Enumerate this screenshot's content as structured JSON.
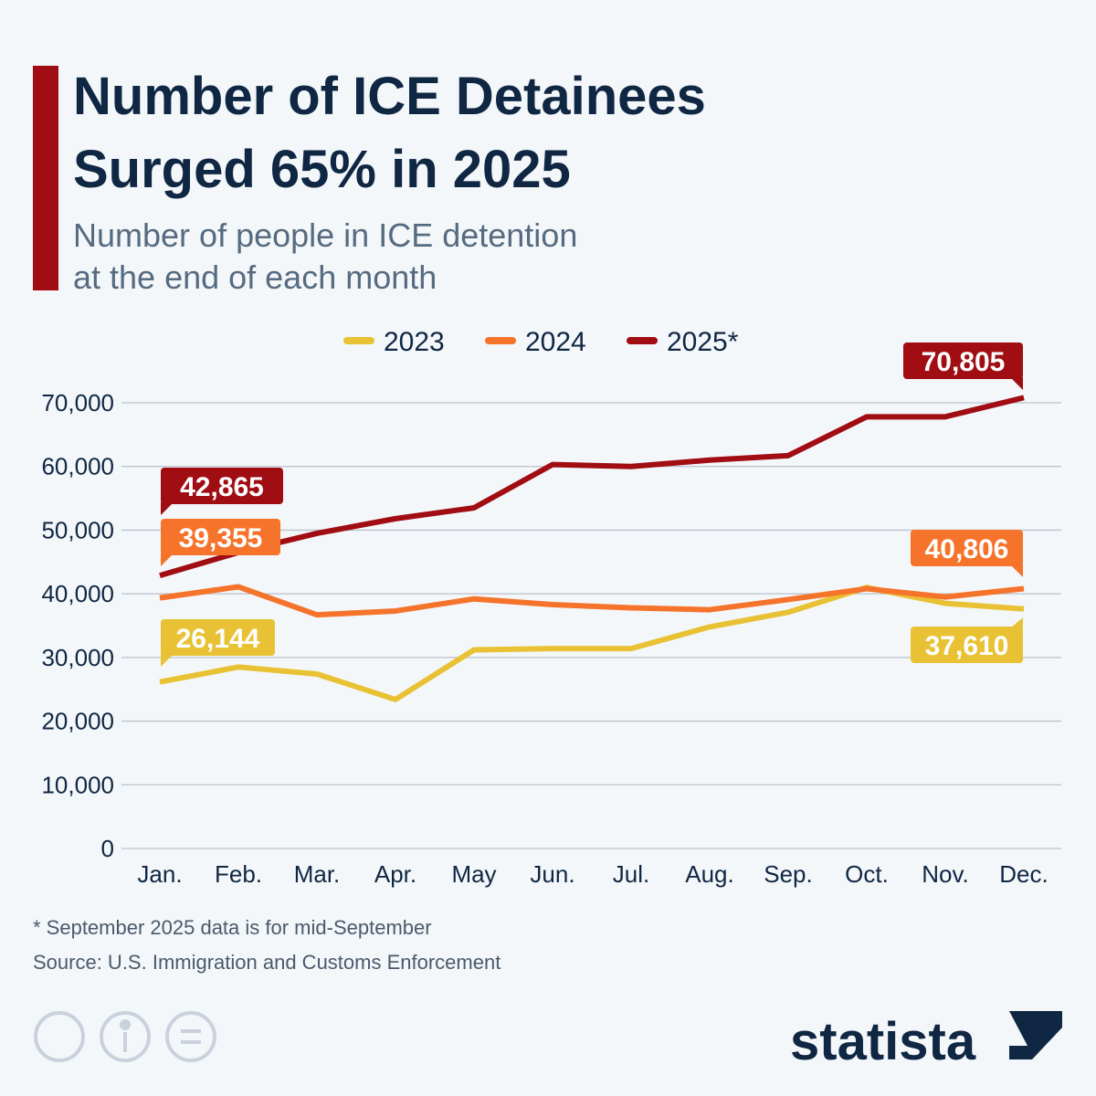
{
  "chart_data": {
    "type": "line",
    "title_lines": [
      "Number of ICE Detainees",
      "Surged 65% in 2025"
    ],
    "subtitle_lines": [
      "Number of people in ICE detention",
      "at the end of each month"
    ],
    "categories": [
      "Jan.",
      "Feb.",
      "Mar.",
      "Apr.",
      "May",
      "Jun.",
      "Jul.",
      "Aug.",
      "Sep.",
      "Oct.",
      "Nov.",
      "Dec."
    ],
    "series": [
      {
        "name": "2023",
        "color": "#e8c234",
        "values": [
          26144,
          28500,
          27400,
          23400,
          31200,
          31400,
          31400,
          34800,
          37100,
          41000,
          38500,
          37610
        ],
        "value_labels": [
          "26,144",
          null,
          null,
          null,
          null,
          null,
          null,
          null,
          null,
          null,
          null,
          "37,610"
        ]
      },
      {
        "name": "2024",
        "color": "#f5732a",
        "values": [
          39355,
          41100,
          36700,
          37300,
          39200,
          38300,
          37800,
          37500,
          39100,
          40800,
          39500,
          40806
        ],
        "value_labels": [
          "39,355",
          null,
          null,
          null,
          null,
          null,
          null,
          null,
          null,
          null,
          null,
          "40,806"
        ]
      },
      {
        "name": "2025*",
        "color": "#a00d13",
        "values": [
          42865,
          46500,
          49500,
          51800,
          53500,
          60300,
          60000,
          61000,
          61700,
          67800,
          67800,
          70805
        ],
        "value_labels": [
          "42,865",
          null,
          null,
          null,
          null,
          null,
          null,
          null,
          null,
          null,
          null,
          "70,805"
        ]
      }
    ],
    "ylim": [
      0,
      70000
    ],
    "yticks": [
      0,
      {
        "value": 10000,
        "label": "10,000"
      },
      {
        "value": 20000,
        "label": "20,000"
      },
      {
        "value": 30000,
        "label": "30,000"
      },
      {
        "value": 40000,
        "label": "40,000"
      },
      {
        "value": 50000,
        "label": "50,000"
      },
      {
        "value": 60000,
        "label": "60,000"
      },
      {
        "value": 70000,
        "label": "70,000"
      }
    ],
    "grid": true,
    "footnote": "* September 2025 data is for mid-September",
    "source": "Source: U.S. Immigration and Customs Enforcement",
    "brand": "statista"
  }
}
